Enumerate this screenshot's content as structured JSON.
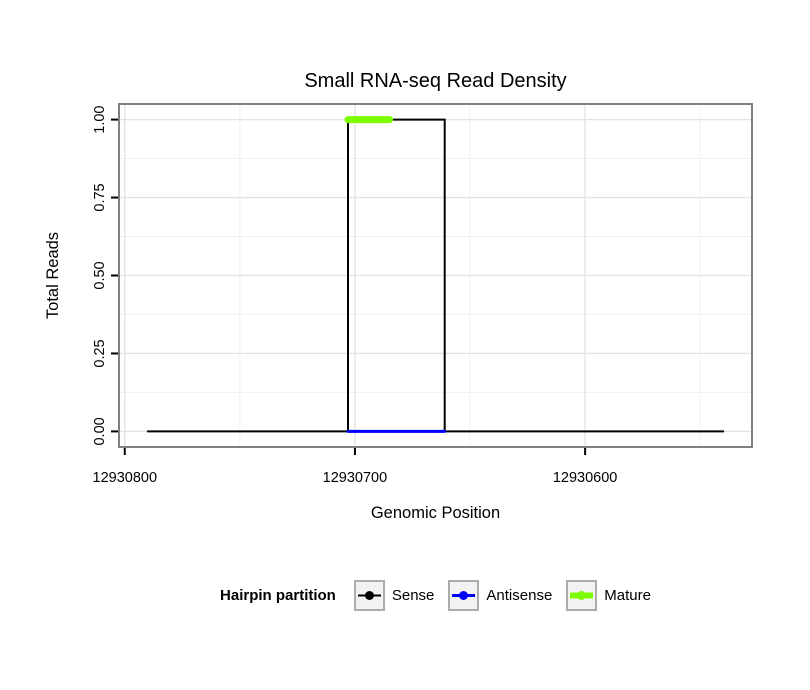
{
  "title": "Small RNA-seq Read Density",
  "chart_data": {
    "type": "line",
    "title": "Small RNA-seq Read Density",
    "xlabel": "Genomic Position",
    "ylabel": "Total Reads",
    "x_reversed": true,
    "xlim": [
      12930790,
      12930540
    ],
    "ylim": [
      0,
      1
    ],
    "x_ticks": [
      12930800,
      12930700,
      12930600
    ],
    "x_tick_labels": [
      "12930800",
      "12930700",
      "12930600"
    ],
    "x_minor_ticks": [
      12930750,
      12930650,
      12930550
    ],
    "y_tick_values": [
      0,
      0.25,
      0.5,
      0.75,
      1
    ],
    "y_tick_labels": [
      "0.00",
      "0.25",
      "0.50",
      "0.75",
      "1.00"
    ],
    "y_minor_ticks": [
      0.125,
      0.375,
      0.625,
      0.875
    ],
    "grid": true,
    "grid_major_color": "#E2E2E2",
    "grid_minor_color": "#F1F1F1",
    "panel_border_color": "#808080",
    "legend_title": "Hairpin partition",
    "legend_position": "bottom",
    "series": [
      {
        "name": "Sense",
        "color": "#000000",
        "width": 2,
        "key_width": 2,
        "points": [
          [
            12930790,
            0
          ],
          [
            12930703,
            0
          ],
          [
            12930703,
            1
          ],
          [
            12930661,
            1
          ],
          [
            12930661,
            0
          ],
          [
            12930540,
            0
          ]
        ]
      },
      {
        "name": "Antisense",
        "color": "#0000FF",
        "width": 3,
        "key_width": 3,
        "points": [
          [
            12930703,
            0
          ],
          [
            12930661,
            0
          ]
        ]
      },
      {
        "name": "Mature",
        "color": "#7CFC00",
        "width": 7,
        "key_width": 6,
        "points": [
          [
            12930703,
            1
          ],
          [
            12930685,
            1
          ]
        ]
      }
    ]
  }
}
